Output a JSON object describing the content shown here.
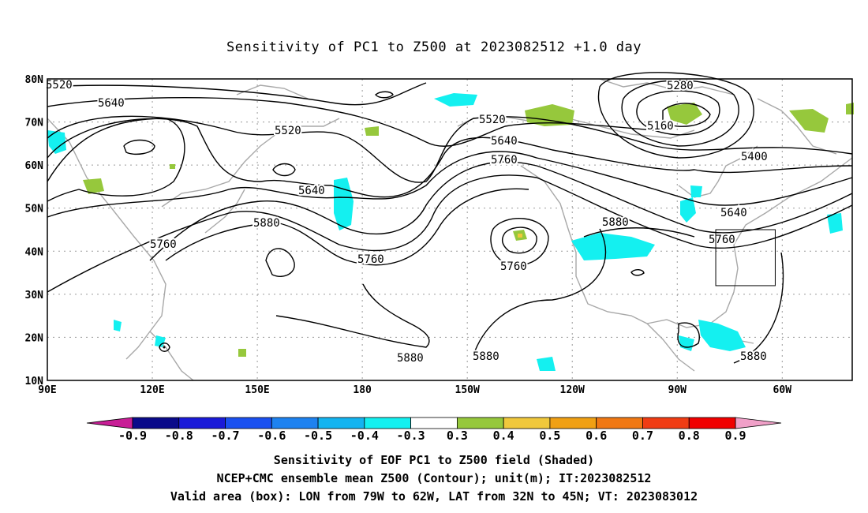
{
  "title": "Sensitivity of PC1 to Z500 at 2023082512 +1.0 day",
  "map": {
    "lon_range": [
      90,
      320
    ],
    "lat_range": [
      10,
      80
    ],
    "lat_ticks": [
      "80N",
      "70N",
      "60N",
      "50N",
      "40N",
      "30N",
      "20N",
      "10N"
    ],
    "lon_ticks": [
      "90E",
      "120E",
      "150E",
      "180",
      "150W",
      "120W",
      "90W",
      "60W"
    ],
    "valid_box": {
      "lon_from": "79W",
      "lon_to": "62W",
      "lat_from": "32N",
      "lat_to": "45N"
    },
    "contour_labels": [
      "5520",
      "5640",
      "5520",
      "5640",
      "5880",
      "5760",
      "5760",
      "5520",
      "5640",
      "5760",
      "5760",
      "5880",
      "5880",
      "5880",
      "5280",
      "5160",
      "5400",
      "5640",
      "5760",
      "5880"
    ]
  },
  "colorbar": {
    "labels": [
      "-0.9",
      "-0.8",
      "-0.7",
      "-0.6",
      "-0.5",
      "-0.4",
      "-0.3",
      "0.3",
      "0.4",
      "0.5",
      "0.6",
      "0.7",
      "0.8",
      "0.9"
    ],
    "colors": [
      "#0a0a8a",
      "#1a1ad8",
      "#1a50f0",
      "#1e82f0",
      "#14b4f0",
      "#14f0f0",
      "#ffffff",
      "#96c83c",
      "#f0c83c",
      "#f0a014",
      "#f07814",
      "#f03c14",
      "#f00000"
    ],
    "low_end_color": "#c81e96",
    "high_end_color": "#f0a0c8"
  },
  "footer": {
    "line1": "Sensitivity of EOF PC1 to Z500 field (Shaded)",
    "line2": "NCEP+CMC ensemble mean Z500 (Contour); unit(m); IT:2023082512",
    "line3": "Valid area (box): LON from 79W to 62W, LAT from 32N to 45N; VT: 2023083012"
  }
}
